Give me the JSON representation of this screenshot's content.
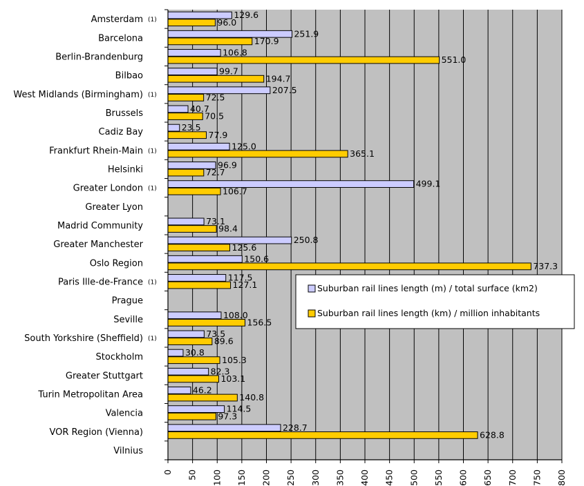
{
  "chart_data": {
    "type": "bar",
    "orientation": "horizontal",
    "categories": [
      "Amsterdam",
      "Barcelona",
      "Berlin-Brandenburg",
      "Bilbao",
      "West Midlands (Birmingham)",
      "Brussels",
      "Cadiz Bay",
      "Frankfurt Rhein-Main",
      "Helsinki",
      "Greater London",
      "Greater Lyon",
      "Madrid Community",
      "Greater Manchester",
      "Oslo Region",
      "Paris Ille-de-France",
      "Prague",
      "Seville",
      "South Yorkshire (Sheffield)",
      "Stockholm",
      "Greater Stuttgart",
      "Turin Metropolitan Area",
      "Valencia",
      "VOR Region (Vienna)",
      "Vilnius"
    ],
    "category_notes": [
      "(1)",
      "",
      "",
      "",
      "(1)",
      "",
      "",
      "(1)",
      "",
      "(1)",
      "",
      "",
      "",
      "",
      "(1)",
      "",
      "",
      "(1)",
      "",
      "",
      "",
      "",
      "",
      ""
    ],
    "series": [
      {
        "name": "Suburban rail lines length (m) / total surface (km2)",
        "color": "#ccccff",
        "values": [
          129.6,
          251.9,
          106.8,
          99.7,
          207.5,
          40.7,
          23.5,
          125.0,
          96.9,
          499.1,
          null,
          73.1,
          250.8,
          150.6,
          117.5,
          null,
          108.0,
          73.5,
          30.8,
          82.3,
          46.2,
          114.5,
          228.7,
          null
        ],
        "labels": [
          "129.6",
          "251.9",
          "106.8",
          "99.7",
          "207.5",
          "40.7",
          "23.5",
          "125.0",
          "96.9",
          "499.1",
          "",
          "73.1",
          "250.8",
          "150.6",
          "117.5",
          "",
          "108.0",
          "73.5",
          "30.8",
          "82.3",
          "46.2",
          "114.5",
          "228.7",
          ""
        ]
      },
      {
        "name": "Suburban rail lines length (km) / million inhabitants",
        "color": "#ffcc00",
        "values": [
          96.0,
          170.9,
          551.0,
          194.7,
          72.5,
          70.5,
          77.9,
          365.1,
          72.7,
          106.7,
          null,
          98.4,
          125.6,
          737.3,
          127.1,
          null,
          156.5,
          89.6,
          105.3,
          103.1,
          140.8,
          97.3,
          628.8,
          null
        ],
        "labels": [
          "96.0",
          "170.9",
          "551.0",
          "194.7",
          "72.5",
          "70.5",
          "77.9",
          "365.1",
          "72.7",
          "106.7",
          "",
          "98.4",
          "125.6",
          "737.3",
          "127.1",
          "",
          "156.5",
          "89.6",
          "105.3",
          "103.1",
          "140.8",
          "97.3",
          "628.8",
          ""
        ]
      }
    ],
    "x_ticks": [
      "0",
      "50",
      "100",
      "150",
      "200",
      "250",
      "300",
      "350",
      "400",
      "450",
      "500",
      "550",
      "600",
      "650",
      "700",
      "750",
      "800"
    ],
    "xlim": [
      0,
      800
    ],
    "grid": true,
    "legend_position": "right",
    "plot_background": "#c0c0c0"
  }
}
